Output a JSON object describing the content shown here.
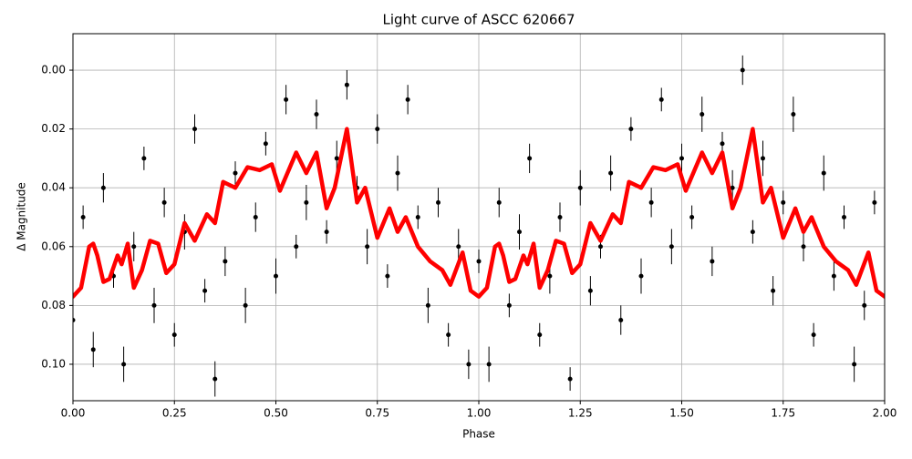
{
  "chart_data": {
    "type": "scatter",
    "title": "Light curve of ASCC 620667",
    "x_label": "Phase",
    "y_label": "Δ Magnitude",
    "xlim": [
      0,
      2
    ],
    "ylim": [
      -0.0124,
      0.1124
    ],
    "y_inverted": true,
    "grid": true,
    "xticks": [
      {
        "value": 0,
        "label": "0.00"
      },
      {
        "value": 0.25,
        "label": "0.25"
      },
      {
        "value": 0.5,
        "label": "0.50"
      },
      {
        "value": 0.75,
        "label": "0.75"
      },
      {
        "value": 1,
        "label": "1.00"
      },
      {
        "value": 1.25,
        "label": "1.25"
      },
      {
        "value": 1.5,
        "label": "1.50"
      },
      {
        "value": 1.75,
        "label": "1.75"
      },
      {
        "value": 2,
        "label": "2.00"
      }
    ],
    "yticks": [
      {
        "value": 0,
        "label": "0.00"
      },
      {
        "value": 0.02,
        "label": "0.02"
      },
      {
        "value": 0.04,
        "label": "0.04"
      },
      {
        "value": 0.06,
        "label": "0.06"
      },
      {
        "value": 0.08,
        "label": "0.08"
      },
      {
        "value": 0.1,
        "label": "0.10"
      }
    ],
    "series": [
      {
        "kind": "errorbar",
        "color": "#000000",
        "x": [
          0,
          0.025,
          0.05,
          0.075,
          0.1,
          0.125,
          0.15,
          0.175,
          0.2,
          0.225,
          0.25,
          0.275,
          0.3,
          0.325,
          0.35,
          0.375,
          0.4,
          0.425,
          0.45,
          0.475,
          0.5,
          0.525,
          0.55,
          0.575,
          0.6,
          0.625,
          0.65,
          0.675,
          0.7,
          0.725,
          0.75,
          0.775,
          0.8,
          0.825,
          0.85,
          0.875,
          0.9,
          0.925,
          0.95,
          0.975,
          1,
          1.025,
          1.05,
          1.075,
          1.1,
          1.125,
          1.15,
          1.175,
          1.2,
          1.225,
          1.25,
          1.275,
          1.3,
          1.325,
          1.35,
          1.375,
          1.4,
          1.425,
          1.45,
          1.475,
          1.5,
          1.525,
          1.55,
          1.575,
          1.6,
          1.625,
          1.65,
          1.675,
          1.7,
          1.725,
          1.75,
          1.775,
          1.8,
          1.825,
          1.85,
          1.875,
          1.9,
          1.925,
          1.95,
          1.975
        ],
        "values": [
          0.085,
          0.05,
          0.095,
          0.04,
          0.07,
          0.1,
          0.06,
          0.03,
          0.08,
          0.045,
          0.09,
          0.055,
          0.02,
          0.075,
          0.105,
          0.065,
          0.035,
          0.08,
          0.05,
          0.025,
          0.07,
          0.01,
          0.06,
          0.045,
          0.015,
          0.055,
          0.03,
          0.005,
          0.04,
          0.06,
          0.02,
          0.07,
          0.035,
          0.01,
          0.05,
          0.08,
          0.045,
          0.09,
          0.06,
          0.1,
          0.065,
          0.1,
          0.045,
          0.08,
          0.055,
          0.03,
          0.09,
          0.07,
          0.05,
          0.105,
          0.04,
          0.075,
          0.06,
          0.035,
          0.085,
          0.02,
          0.07,
          0.045,
          0.01,
          0.06,
          0.03,
          0.05,
          0.015,
          0.065,
          0.025,
          0.04,
          0.0,
          0.055,
          0.03,
          0.075,
          0.045,
          0.015,
          0.06,
          0.09,
          0.035,
          0.07,
          0.05,
          0.1,
          0.08,
          0.045
        ],
        "errors": [
          0.005,
          0.004,
          0.006,
          0.005,
          0.004,
          0.006,
          0.005,
          0.004,
          0.006,
          0.005,
          0.004,
          0.006,
          0.005,
          0.004,
          0.006,
          0.005,
          0.004,
          0.006,
          0.005,
          0.004,
          0.006,
          0.005,
          0.004,
          0.006,
          0.005,
          0.004,
          0.006,
          0.005,
          0.004,
          0.006,
          0.005,
          0.004,
          0.006,
          0.005,
          0.004,
          0.006,
          0.005,
          0.004,
          0.006,
          0.005,
          0.004,
          0.006,
          0.005,
          0.004,
          0.006,
          0.005,
          0.004,
          0.006,
          0.005,
          0.004,
          0.006,
          0.005,
          0.004,
          0.006,
          0.005,
          0.004,
          0.006,
          0.005,
          0.004,
          0.006,
          0.005,
          0.004,
          0.006,
          0.005,
          0.004,
          0.006,
          0.005,
          0.004,
          0.006,
          0.005,
          0.004,
          0.006,
          0.005,
          0.004,
          0.006,
          0.005,
          0.004,
          0.006,
          0.005,
          0.004
        ]
      },
      {
        "kind": "line",
        "color": "#ff0000",
        "x": [
          0,
          0.02,
          0.04,
          0.05,
          0.06,
          0.075,
          0.09,
          0.11,
          0.12,
          0.135,
          0.15,
          0.17,
          0.19,
          0.21,
          0.23,
          0.25,
          0.275,
          0.3,
          0.33,
          0.35,
          0.37,
          0.4,
          0.43,
          0.46,
          0.49,
          0.51,
          0.55,
          0.575,
          0.6,
          0.625,
          0.645,
          0.675,
          0.7,
          0.72,
          0.75,
          0.78,
          0.8,
          0.82,
          0.85,
          0.88,
          0.91,
          0.93,
          0.96,
          0.98,
          1,
          1.02,
          1.04,
          1.05,
          1.06,
          1.075,
          1.09,
          1.11,
          1.12,
          1.135,
          1.15,
          1.17,
          1.19,
          1.21,
          1.23,
          1.25,
          1.275,
          1.3,
          1.33,
          1.35,
          1.37,
          1.4,
          1.43,
          1.46,
          1.49,
          1.51,
          1.55,
          1.575,
          1.6,
          1.625,
          1.645,
          1.675,
          1.7,
          1.72,
          1.75,
          1.78,
          1.8,
          1.82,
          1.85,
          1.88,
          1.91,
          1.93,
          1.96,
          1.98,
          2
        ],
        "values": [
          0.077,
          0.074,
          0.06,
          0.059,
          0.063,
          0.072,
          0.071,
          0.063,
          0.066,
          0.059,
          0.074,
          0.068,
          0.058,
          0.059,
          0.069,
          0.066,
          0.052,
          0.058,
          0.049,
          0.052,
          0.038,
          0.04,
          0.033,
          0.034,
          0.032,
          0.041,
          0.028,
          0.035,
          0.028,
          0.047,
          0.04,
          0.02,
          0.045,
          0.04,
          0.057,
          0.047,
          0.055,
          0.05,
          0.06,
          0.065,
          0.068,
          0.073,
          0.062,
          0.075,
          0.077,
          0.074,
          0.06,
          0.059,
          0.063,
          0.072,
          0.071,
          0.063,
          0.066,
          0.059,
          0.074,
          0.068,
          0.058,
          0.059,
          0.069,
          0.066,
          0.052,
          0.058,
          0.049,
          0.052,
          0.038,
          0.04,
          0.033,
          0.034,
          0.032,
          0.041,
          0.028,
          0.035,
          0.028,
          0.047,
          0.04,
          0.02,
          0.045,
          0.04,
          0.057,
          0.047,
          0.055,
          0.05,
          0.06,
          0.065,
          0.068,
          0.073,
          0.062,
          0.075,
          0.077
        ]
      }
    ]
  }
}
